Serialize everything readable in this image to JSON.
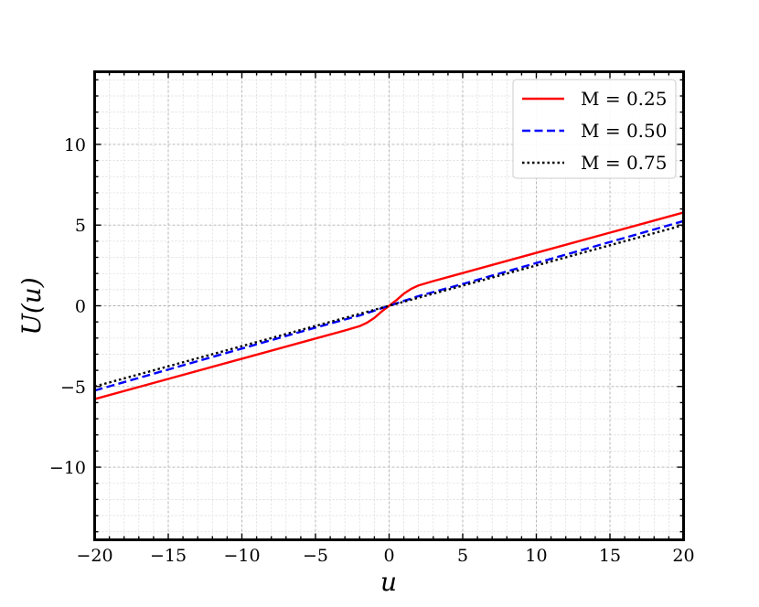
{
  "chart_data": {
    "type": "line",
    "xlabel": "u",
    "ylabel": "U(u)",
    "xlim": [
      -20,
      20
    ],
    "ylim": [
      -14.5,
      14.5
    ],
    "xticks": [
      -20,
      -15,
      -10,
      -5,
      0,
      5,
      10,
      15,
      20
    ],
    "xtick_labels": [
      "−20",
      "−15",
      "−10",
      "−5",
      "0",
      "5",
      "10",
      "15",
      "20"
    ],
    "yticks": [
      -10,
      -5,
      0,
      5,
      10
    ],
    "ytick_labels": [
      "−10",
      "−5",
      "0",
      "5",
      "10"
    ],
    "grid": true,
    "legend_position": "top-right",
    "x": [
      -20,
      -15,
      -10,
      -5,
      -3,
      -2,
      -1.5,
      -1,
      -0.5,
      0,
      0.5,
      1,
      1.5,
      2,
      3,
      5,
      10,
      15,
      20
    ],
    "series": [
      {
        "name": "M = 0.25",
        "legend_label": "M = 0.25",
        "color": "#ff0000",
        "style": "solid",
        "values": [
          -5.78,
          -4.53,
          -3.28,
          -2.03,
          -1.53,
          -1.26,
          -1.05,
          -0.75,
          -0.35,
          0.0,
          0.35,
          0.75,
          1.05,
          1.26,
          1.53,
          2.03,
          3.28,
          4.53,
          5.78
        ]
      },
      {
        "name": "M = 0.50",
        "legend_label": "M = 0.50",
        "color": "#0000ff",
        "style": "dashed",
        "values": [
          -5.25,
          -3.95,
          -2.65,
          -1.35,
          -0.85,
          -0.6,
          -0.45,
          -0.3,
          -0.15,
          0.0,
          0.15,
          0.3,
          0.45,
          0.6,
          0.85,
          1.35,
          2.65,
          3.95,
          5.25
        ]
      },
      {
        "name": "M = 0.75",
        "legend_label": "M = 0.75",
        "color": "#000000",
        "style": "dotted",
        "values": [
          -5.0,
          -3.75,
          -2.5,
          -1.25,
          -0.75,
          -0.5,
          -0.375,
          -0.25,
          -0.125,
          0.0,
          0.125,
          0.25,
          0.375,
          0.5,
          0.75,
          1.25,
          2.5,
          3.75,
          5.0
        ]
      }
    ]
  }
}
